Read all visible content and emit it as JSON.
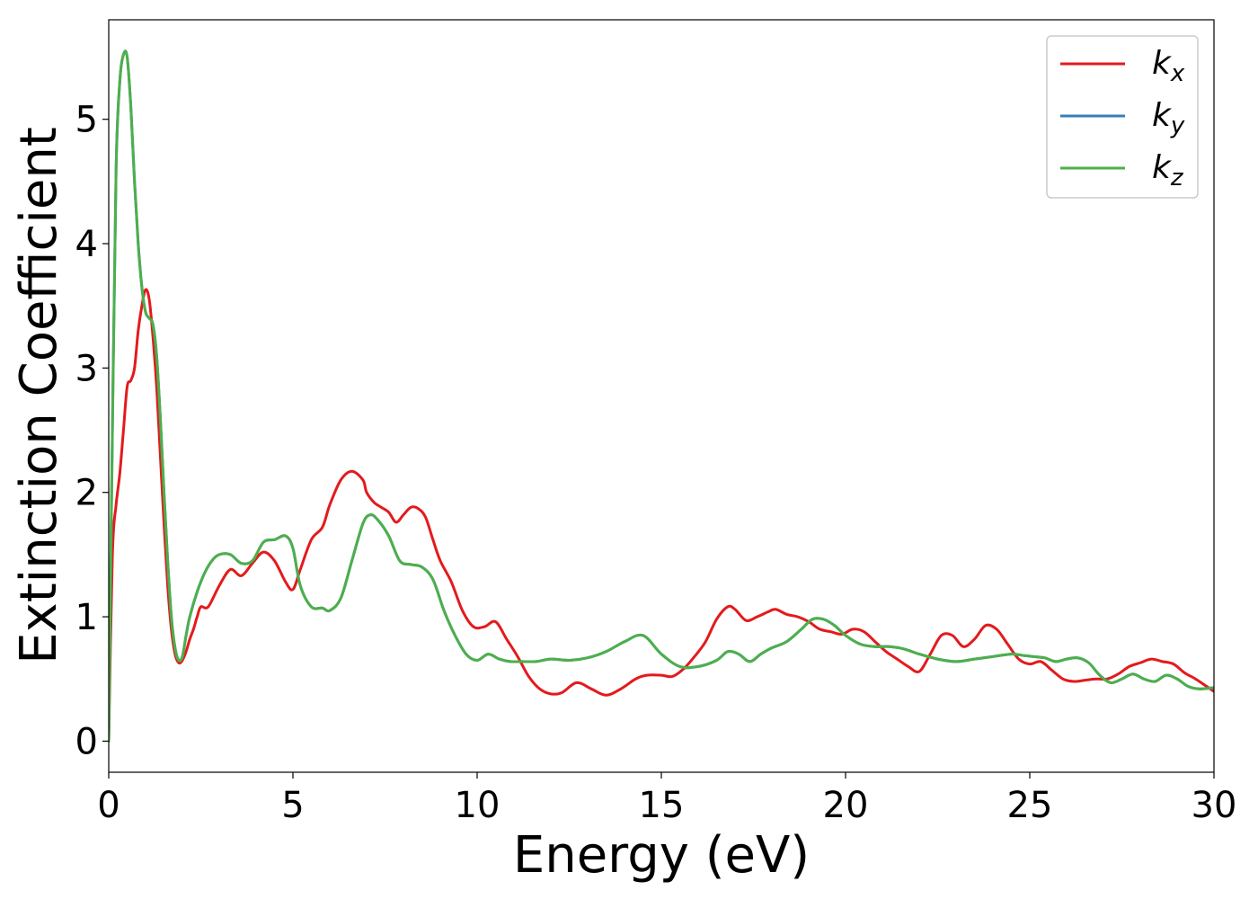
{
  "chart_data": {
    "type": "line",
    "title": "",
    "xlabel": "Energy (eV)",
    "ylabel": "Extinction Coefficient",
    "xlim": [
      0,
      30
    ],
    "ylim": [
      -0.25,
      5.8
    ],
    "xticks": [
      0,
      5,
      10,
      15,
      20,
      25,
      30
    ],
    "yticks": [
      0,
      1,
      2,
      3,
      4,
      5
    ],
    "grid": false,
    "legend_position": "top-right",
    "series": [
      {
        "name": "k_x",
        "label_main": "k",
        "label_sub": "x",
        "color": "#e41a1c",
        "x": [
          0,
          0.1,
          0.2,
          0.3,
          0.4,
          0.5,
          0.6,
          0.7,
          0.8,
          0.9,
          1.0,
          1.1,
          1.2,
          1.3,
          1.4,
          1.5,
          1.6,
          1.7,
          1.8,
          1.9,
          2.0,
          2.1,
          2.2,
          2.3,
          2.4,
          2.5,
          2.7,
          3.0,
          3.3,
          3.6,
          3.9,
          4.2,
          4.5,
          4.8,
          5.0,
          5.2,
          5.5,
          5.8,
          6.0,
          6.3,
          6.6,
          6.9,
          7.0,
          7.2,
          7.4,
          7.6,
          7.8,
          8.0,
          8.2,
          8.4,
          8.6,
          8.8,
          9.0,
          9.3,
          9.6,
          9.9,
          10.2,
          10.5,
          10.8,
          11.1,
          11.4,
          11.7,
          12.0,
          12.3,
          12.7,
          13.1,
          13.5,
          13.9,
          14.3,
          14.6,
          15.0,
          15.3,
          15.6,
          15.9,
          16.2,
          16.5,
          16.8,
          17.0,
          17.3,
          17.6,
          17.9,
          18.1,
          18.4,
          18.7,
          19.0,
          19.3,
          19.6,
          19.9,
          20.2,
          20.5,
          20.8,
          21.1,
          21.4,
          21.7,
          22.0,
          22.3,
          22.6,
          22.9,
          23.2,
          23.5,
          23.8,
          24.1,
          24.4,
          24.7,
          25.0,
          25.3,
          25.6,
          25.9,
          26.2,
          26.5,
          26.8,
          27.1,
          27.4,
          27.7,
          28.0,
          28.3,
          28.6,
          28.9,
          29.2,
          29.5,
          29.8,
          30.0
        ],
        "values": [
          0.0,
          1.5,
          1.9,
          2.15,
          2.5,
          2.85,
          2.9,
          3.0,
          3.3,
          3.5,
          3.63,
          3.55,
          3.25,
          2.85,
          2.3,
          1.75,
          1.25,
          0.9,
          0.7,
          0.63,
          0.65,
          0.72,
          0.82,
          0.9,
          1.0,
          1.08,
          1.08,
          1.25,
          1.38,
          1.33,
          1.43,
          1.52,
          1.45,
          1.28,
          1.22,
          1.38,
          1.62,
          1.72,
          1.9,
          2.1,
          2.17,
          2.1,
          2.0,
          1.92,
          1.88,
          1.84,
          1.76,
          1.82,
          1.88,
          1.87,
          1.8,
          1.62,
          1.45,
          1.28,
          1.05,
          0.92,
          0.92,
          0.96,
          0.82,
          0.68,
          0.52,
          0.42,
          0.38,
          0.39,
          0.47,
          0.42,
          0.37,
          0.42,
          0.5,
          0.53,
          0.53,
          0.52,
          0.58,
          0.68,
          0.8,
          0.98,
          1.08,
          1.06,
          0.97,
          1.0,
          1.04,
          1.06,
          1.02,
          1.0,
          0.96,
          0.9,
          0.88,
          0.86,
          0.9,
          0.88,
          0.8,
          0.72,
          0.66,
          0.6,
          0.56,
          0.7,
          0.85,
          0.85,
          0.76,
          0.82,
          0.93,
          0.9,
          0.78,
          0.66,
          0.62,
          0.64,
          0.57,
          0.5,
          0.48,
          0.49,
          0.5,
          0.5,
          0.54,
          0.6,
          0.63,
          0.66,
          0.64,
          0.62,
          0.55,
          0.5,
          0.44,
          0.4
        ]
      },
      {
        "name": "k_y",
        "label_main": "k",
        "label_sub": "y",
        "color": "#377eb8",
        "x": [
          0,
          0.1,
          0.2,
          0.3,
          0.4,
          0.5,
          0.6,
          0.7,
          0.8,
          0.9,
          1.0,
          1.1,
          1.2,
          1.3,
          1.4,
          1.5,
          1.6,
          1.7,
          1.8,
          1.9,
          2.0,
          2.1,
          2.2,
          2.4,
          2.6,
          2.8,
          3.0,
          3.3,
          3.6,
          3.9,
          4.2,
          4.5,
          4.8,
          5.0,
          5.2,
          5.5,
          5.8,
          6.0,
          6.3,
          6.6,
          6.9,
          7.1,
          7.3,
          7.6,
          7.9,
          8.2,
          8.5,
          8.8,
          9.1,
          9.4,
          9.7,
          10.0,
          10.3,
          10.6,
          10.9,
          11.2,
          11.6,
          12.0,
          12.5,
          13.0,
          13.5,
          14.0,
          14.5,
          15.0,
          15.5,
          16.0,
          16.5,
          16.8,
          17.1,
          17.4,
          17.7,
          18.0,
          18.4,
          18.8,
          19.1,
          19.4,
          19.7,
          20.0,
          20.4,
          20.8,
          21.2,
          21.6,
          22.0,
          22.5,
          23.0,
          23.5,
          24.0,
          24.5,
          24.8,
          25.1,
          25.4,
          25.7,
          26.0,
          26.3,
          26.6,
          26.9,
          27.2,
          27.5,
          27.8,
          28.1,
          28.4,
          28.7,
          29.0,
          29.3,
          29.6,
          30.0
        ],
        "values": [
          0.0,
          2.5,
          4.6,
          5.3,
          5.52,
          5.5,
          5.1,
          4.5,
          4.0,
          3.65,
          3.45,
          3.4,
          3.35,
          3.1,
          2.6,
          2.0,
          1.45,
          1.0,
          0.75,
          0.65,
          0.68,
          0.85,
          1.0,
          1.2,
          1.35,
          1.45,
          1.5,
          1.5,
          1.43,
          1.45,
          1.6,
          1.62,
          1.65,
          1.55,
          1.25,
          1.08,
          1.07,
          1.05,
          1.15,
          1.45,
          1.75,
          1.82,
          1.78,
          1.65,
          1.45,
          1.42,
          1.4,
          1.3,
          1.05,
          0.85,
          0.7,
          0.65,
          0.7,
          0.66,
          0.64,
          0.64,
          0.64,
          0.66,
          0.65,
          0.67,
          0.72,
          0.8,
          0.85,
          0.7,
          0.6,
          0.6,
          0.65,
          0.72,
          0.7,
          0.64,
          0.7,
          0.75,
          0.8,
          0.9,
          0.98,
          0.98,
          0.93,
          0.85,
          0.78,
          0.76,
          0.76,
          0.74,
          0.7,
          0.66,
          0.64,
          0.66,
          0.68,
          0.7,
          0.69,
          0.68,
          0.67,
          0.64,
          0.66,
          0.67,
          0.63,
          0.53,
          0.47,
          0.5,
          0.54,
          0.5,
          0.48,
          0.53,
          0.5,
          0.44,
          0.42,
          0.43
        ]
      },
      {
        "name": "k_z",
        "label_main": "k",
        "label_sub": "z",
        "color": "#4daf4a",
        "x": [
          0,
          0.1,
          0.2,
          0.3,
          0.4,
          0.5,
          0.6,
          0.7,
          0.8,
          0.9,
          1.0,
          1.1,
          1.2,
          1.3,
          1.4,
          1.5,
          1.6,
          1.7,
          1.8,
          1.9,
          2.0,
          2.1,
          2.2,
          2.4,
          2.6,
          2.8,
          3.0,
          3.3,
          3.6,
          3.9,
          4.2,
          4.5,
          4.8,
          5.0,
          5.2,
          5.5,
          5.8,
          6.0,
          6.3,
          6.6,
          6.9,
          7.1,
          7.3,
          7.6,
          7.9,
          8.2,
          8.5,
          8.8,
          9.1,
          9.4,
          9.7,
          10.0,
          10.3,
          10.6,
          10.9,
          11.2,
          11.6,
          12.0,
          12.5,
          13.0,
          13.5,
          14.0,
          14.5,
          15.0,
          15.5,
          16.0,
          16.5,
          16.8,
          17.1,
          17.4,
          17.7,
          18.0,
          18.4,
          18.8,
          19.1,
          19.4,
          19.7,
          20.0,
          20.4,
          20.8,
          21.2,
          21.6,
          22.0,
          22.5,
          23.0,
          23.5,
          24.0,
          24.5,
          24.8,
          25.1,
          25.4,
          25.7,
          26.0,
          26.3,
          26.6,
          26.9,
          27.2,
          27.5,
          27.8,
          28.1,
          28.4,
          28.7,
          29.0,
          29.3,
          29.6,
          30.0
        ],
        "values": [
          0.0,
          2.5,
          4.6,
          5.3,
          5.52,
          5.5,
          5.1,
          4.5,
          4.0,
          3.65,
          3.45,
          3.4,
          3.35,
          3.1,
          2.6,
          2.0,
          1.45,
          1.0,
          0.75,
          0.65,
          0.68,
          0.85,
          1.0,
          1.2,
          1.35,
          1.45,
          1.5,
          1.5,
          1.43,
          1.45,
          1.6,
          1.62,
          1.65,
          1.55,
          1.25,
          1.08,
          1.07,
          1.05,
          1.15,
          1.45,
          1.75,
          1.82,
          1.78,
          1.65,
          1.45,
          1.42,
          1.4,
          1.3,
          1.05,
          0.85,
          0.7,
          0.65,
          0.7,
          0.66,
          0.64,
          0.64,
          0.64,
          0.66,
          0.65,
          0.67,
          0.72,
          0.8,
          0.85,
          0.7,
          0.6,
          0.6,
          0.65,
          0.72,
          0.7,
          0.64,
          0.7,
          0.75,
          0.8,
          0.9,
          0.98,
          0.98,
          0.93,
          0.85,
          0.78,
          0.76,
          0.76,
          0.74,
          0.7,
          0.66,
          0.64,
          0.66,
          0.68,
          0.7,
          0.69,
          0.68,
          0.67,
          0.64,
          0.66,
          0.67,
          0.63,
          0.53,
          0.47,
          0.5,
          0.54,
          0.5,
          0.48,
          0.53,
          0.5,
          0.44,
          0.42,
          0.43
        ]
      }
    ]
  }
}
